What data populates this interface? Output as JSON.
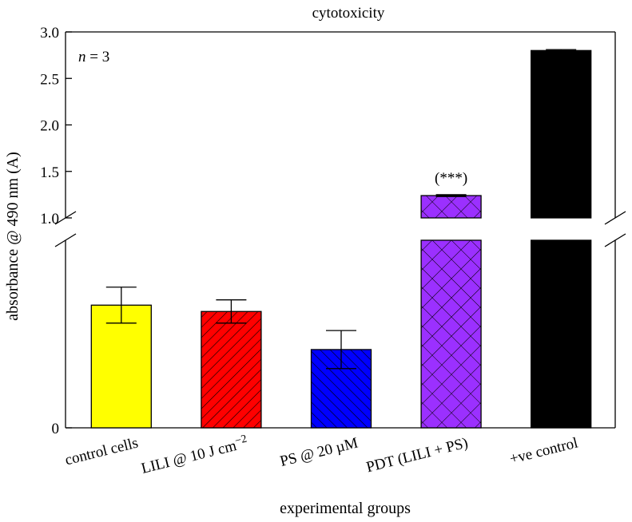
{
  "chart_data": {
    "type": "bar",
    "title": "cytotoxicity",
    "xlabel": "experimental groups",
    "ylabel": "absorbance @ 490 nm (A)",
    "annotation_n": "n = 3",
    "categories": [
      "control cells",
      "LILI @ 10 J cm−2",
      "PS @ 20 µM",
      "PDT (LILI + PS)",
      "+ve control"
    ],
    "values": [
      0.58,
      0.55,
      0.37,
      1.24,
      2.8
    ],
    "errors": [
      0.085,
      0.055,
      0.09,
      0.01,
      0.01
    ],
    "significance": [
      "",
      "",
      "",
      "(***)",
      ""
    ],
    "fill_colors": [
      "#ffff00",
      "#ff0000",
      "#0000ff",
      "#9b30ff",
      "#000000"
    ],
    "patterns": [
      "none",
      "forward-diagonal",
      "back-diagonal",
      "crosshatch",
      "none"
    ],
    "y_axis_break": [
      1.0,
      1.0
    ],
    "ylim_lower": [
      0,
      1.0
    ],
    "ylim_upper": [
      1.0,
      3.0
    ],
    "yticks": [
      "0",
      "1.0",
      "1.5",
      "2.0",
      "2.5",
      "3.0"
    ],
    "grid": false,
    "legend": "none"
  }
}
